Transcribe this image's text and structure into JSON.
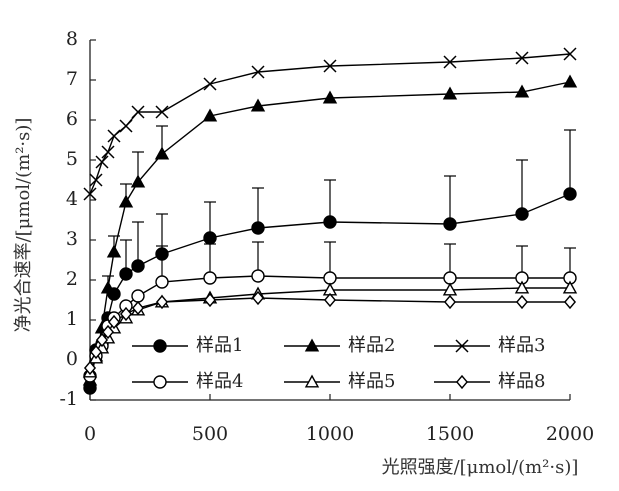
{
  "chart_data": {
    "type": "line",
    "title": "",
    "xlabel": "光照强度/[μmol/(m²·s)]",
    "ylabel": "净光合速率/[μmol/(m²·s)]",
    "xlim": [
      0,
      2000
    ],
    "ylim": [
      -1,
      8
    ],
    "xticks": [
      "0",
      "500",
      "1000",
      "1500",
      "2000"
    ],
    "yticks": [
      "-1",
      "0",
      "1",
      "2",
      "3",
      "4",
      "5",
      "6",
      "7",
      "8"
    ],
    "x": [
      0,
      25,
      50,
      75,
      100,
      150,
      200,
      300,
      500,
      700,
      1000,
      1500,
      1800,
      2000
    ],
    "grid": false,
    "legend_position": "bottom-inside",
    "series": [
      {
        "name": "样品1",
        "marker": "filled-circle",
        "values": [
          -0.7,
          0.25,
          0.4,
          1.05,
          1.65,
          2.15,
          2.35,
          2.65,
          3.05,
          3.3,
          3.45,
          3.4,
          3.65,
          4.15
        ],
        "errors": [
          0,
          0,
          0,
          0,
          0,
          0.85,
          1.1,
          1.0,
          0.9,
          1.0,
          1.05,
          1.2,
          1.35,
          1.6
        ]
      },
      {
        "name": "样品2",
        "marker": "filled-triangle",
        "values": [
          -0.5,
          0.1,
          0.8,
          1.8,
          2.7,
          3.95,
          4.45,
          5.15,
          6.1,
          6.35,
          6.55,
          6.65,
          6.7,
          6.95
        ],
        "errors": [
          0,
          0,
          0,
          0.3,
          0.4,
          0.45,
          0.75,
          0.7,
          0,
          0,
          0,
          0,
          0,
          0
        ]
      },
      {
        "name": "样品3",
        "marker": "x",
        "values": [
          4.15,
          4.5,
          4.95,
          5.2,
          5.6,
          5.85,
          6.2,
          6.2,
          6.9,
          7.2,
          7.35,
          7.45,
          7.55,
          7.65
        ],
        "errors": [
          0,
          0,
          0,
          0,
          0,
          0,
          0,
          0,
          0,
          0,
          0,
          0,
          0,
          0
        ]
      },
      {
        "name": "样品4",
        "marker": "open-circle",
        "values": [
          -0.4,
          0.1,
          0.35,
          0.85,
          1.05,
          1.35,
          1.6,
          1.95,
          2.05,
          2.1,
          2.05,
          2.05,
          2.05,
          2.05
        ],
        "errors": [
          0,
          0,
          0,
          0,
          0,
          0,
          0,
          0.9,
          0.85,
          0.85,
          0.9,
          0.85,
          0.8,
          0.75
        ]
      },
      {
        "name": "样品5",
        "marker": "open-triangle",
        "values": [
          -0.3,
          0.05,
          0.3,
          0.55,
          0.8,
          1.05,
          1.25,
          1.45,
          1.55,
          1.65,
          1.75,
          1.75,
          1.8,
          1.8
        ],
        "errors": [
          0,
          0,
          0,
          0,
          0,
          0,
          0,
          0,
          0,
          0,
          0,
          0,
          0,
          0
        ]
      },
      {
        "name": "样品8",
        "marker": "open-diamond",
        "values": [
          -0.2,
          0.2,
          0.5,
          0.7,
          0.95,
          1.15,
          1.3,
          1.45,
          1.5,
          1.55,
          1.5,
          1.45,
          1.45,
          1.45
        ],
        "errors": [
          0,
          0,
          0,
          0,
          0,
          0,
          0,
          0,
          0,
          0,
          0,
          0,
          0,
          0
        ]
      }
    ]
  }
}
